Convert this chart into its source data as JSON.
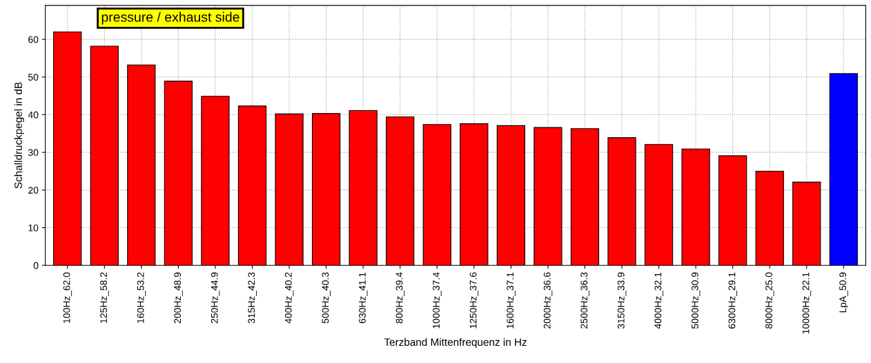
{
  "chart_data": {
    "type": "bar",
    "xlabel": "Terzband Mittenfrequenz in Hz",
    "ylabel": "Schalldruckpegel in dB",
    "annotations": [
      "pressure / exhaust side"
    ],
    "categories": [
      "100Hz_62.0",
      "125Hz_58.2",
      "160Hz_53.2",
      "200Hz_48.9",
      "250Hz_44.9",
      "315Hz_42.3",
      "400Hz_40.2",
      "500Hz_40.3",
      "630Hz_41.1",
      "800Hz_39.4",
      "1000Hz_37.4",
      "1250Hz_37.6",
      "1600Hz_37.1",
      "2000Hz_36.6",
      "2500Hz_36.3",
      "3150Hz_33.9",
      "4000Hz_32.1",
      "5000Hz_30.9",
      "6300Hz_29.1",
      "8000Hz_25.0",
      "10000Hz_22.1",
      "LpA_50.9"
    ],
    "values": [
      62.0,
      58.2,
      53.2,
      48.9,
      44.9,
      42.3,
      40.2,
      40.3,
      41.1,
      39.4,
      37.4,
      37.6,
      37.1,
      36.6,
      36.3,
      33.9,
      32.1,
      30.9,
      29.1,
      25.0,
      22.1,
      50.9
    ],
    "colors": [
      "#ff0000",
      "#ff0000",
      "#ff0000",
      "#ff0000",
      "#ff0000",
      "#ff0000",
      "#ff0000",
      "#ff0000",
      "#ff0000",
      "#ff0000",
      "#ff0000",
      "#ff0000",
      "#ff0000",
      "#ff0000",
      "#ff0000",
      "#ff0000",
      "#ff0000",
      "#ff0000",
      "#ff0000",
      "#ff0000",
      "#ff0000",
      "#0000ff"
    ],
    "ylim": [
      0,
      69
    ],
    "yticks": [
      0,
      10,
      20,
      30,
      40,
      50,
      60
    ],
    "grid": true
  }
}
